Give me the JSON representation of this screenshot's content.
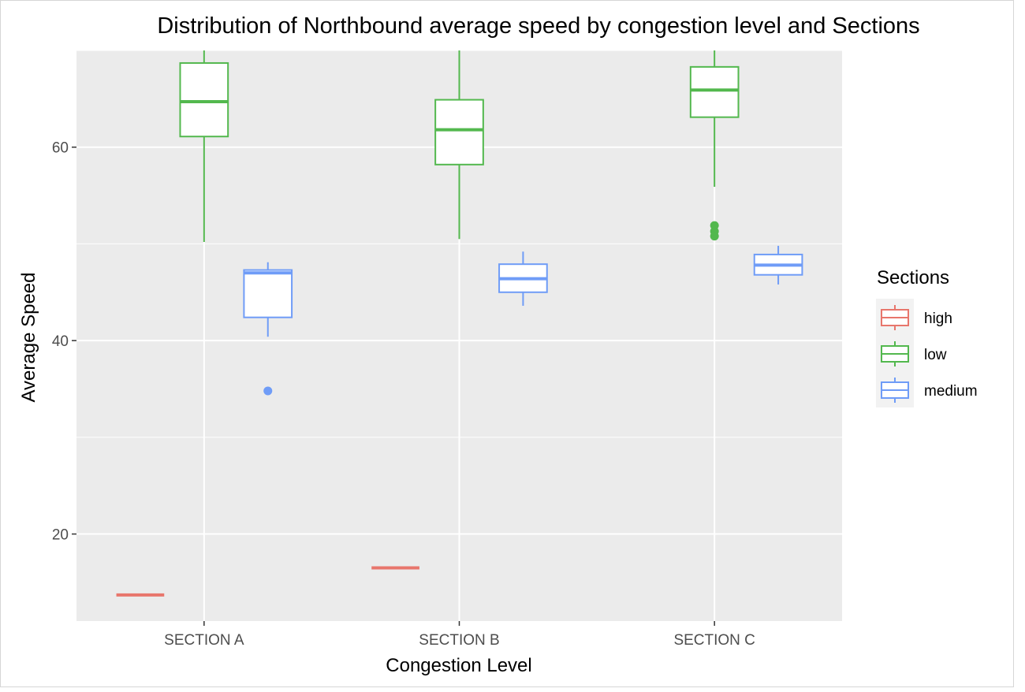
{
  "chart_data": {
    "type": "box",
    "title": "Distribution of Northbound average speed by congestion level and Sections",
    "xlabel": "Congestion Level",
    "ylabel": "Average Speed",
    "categories": [
      "SECTION A",
      "SECTION B",
      "SECTION C"
    ],
    "ylim": [
      11,
      70
    ],
    "yticks": [
      20,
      40,
      60
    ],
    "grid": true,
    "legend": {
      "title": "Sections",
      "position": "right"
    },
    "series": [
      {
        "name": "high",
        "color": "#E8766C",
        "boxes": [
          {
            "category": "SECTION A",
            "min": 13.7,
            "q1": 13.7,
            "median": 13.7,
            "q3": 13.7,
            "max": 13.7,
            "outliers": []
          },
          {
            "category": "SECTION B",
            "min": 16.5,
            "q1": 16.5,
            "median": 16.5,
            "q3": 16.5,
            "max": 16.5,
            "outliers": []
          }
        ]
      },
      {
        "name": "low",
        "color": "#53B84E",
        "boxes": [
          {
            "category": "SECTION A",
            "min": 50.2,
            "q1": 61.1,
            "median": 64.7,
            "q3": 68.7,
            "max": 70,
            "outliers": []
          },
          {
            "category": "SECTION B",
            "min": 50.5,
            "q1": 58.2,
            "median": 61.8,
            "q3": 64.9,
            "max": 70,
            "outliers": []
          },
          {
            "category": "SECTION C",
            "min": 55.9,
            "q1": 63.1,
            "median": 65.9,
            "q3": 68.3,
            "max": 70,
            "outliers": [
              50.8,
              51.3,
              51.9
            ]
          }
        ]
      },
      {
        "name": "medium",
        "color": "#6F9CF7",
        "boxes": [
          {
            "category": "SECTION A",
            "min": 40.4,
            "q1": 42.4,
            "median": 47.0,
            "q3": 47.3,
            "max": 48.1,
            "outliers": [
              34.8
            ]
          },
          {
            "category": "SECTION B",
            "min": 43.6,
            "q1": 45.0,
            "median": 46.4,
            "q3": 47.9,
            "max": 49.2,
            "outliers": []
          },
          {
            "category": "SECTION C",
            "min": 45.8,
            "q1": 46.8,
            "median": 47.8,
            "q3": 48.9,
            "max": 49.8,
            "outliers": []
          }
        ]
      }
    ]
  }
}
